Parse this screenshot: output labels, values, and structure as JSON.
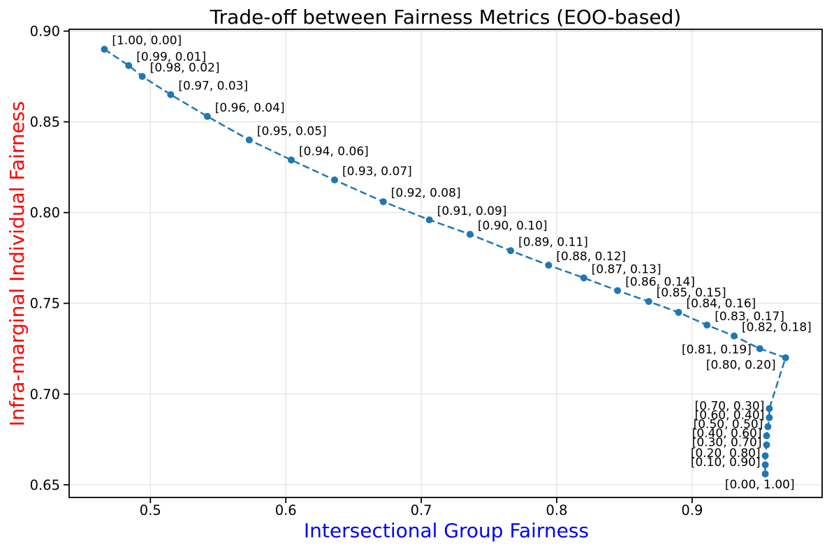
{
  "chart_data": {
    "type": "line",
    "title": "Trade-off between Fairness Metrics (EOO-based)",
    "xlabel": "Intersectional Group Fairness",
    "ylabel": "Infra-marginal Individual Fairness",
    "title_color": "#000000",
    "xlabel_color": "#0000ff",
    "ylabel_color": "#ff0000",
    "line_color": "#1f77b4",
    "line_style": "dashed",
    "marker": "circle",
    "annotation_color": "#000000",
    "tick_color": "#000000",
    "spine_color": "#000000",
    "grid_color": "#e0e0e0",
    "background_color": "#ffffff",
    "grid": true,
    "legend": false,
    "xlim": [
      0.44,
      0.996
    ],
    "ylim": [
      0.643,
      0.901
    ],
    "xticks": {
      "values": [
        0.5,
        0.6,
        0.7,
        0.8,
        0.9
      ],
      "labels": [
        "0.5",
        "0.6",
        "0.7",
        "0.8",
        "0.9"
      ]
    },
    "yticks": {
      "values": [
        0.65,
        0.7,
        0.75,
        0.8,
        0.85,
        0.9
      ],
      "labels": [
        "0.65",
        "0.70",
        "0.75",
        "0.80",
        "0.85",
        "0.90"
      ]
    },
    "points": [
      {
        "label": "[1.00, 0.00]",
        "x": 0.466,
        "y": 0.89,
        "anchor": "ur"
      },
      {
        "label": "[0.99, 0.01]",
        "x": 0.484,
        "y": 0.881,
        "anchor": "ur"
      },
      {
        "label": "[0.98, 0.02]",
        "x": 0.494,
        "y": 0.875,
        "anchor": "ur"
      },
      {
        "label": "[0.97, 0.03]",
        "x": 0.515,
        "y": 0.865,
        "anchor": "ur"
      },
      {
        "label": "[0.96, 0.04]",
        "x": 0.542,
        "y": 0.853,
        "anchor": "ur"
      },
      {
        "label": "[0.95, 0.05]",
        "x": 0.573,
        "y": 0.84,
        "anchor": "ur"
      },
      {
        "label": "[0.94, 0.06]",
        "x": 0.604,
        "y": 0.829,
        "anchor": "ur"
      },
      {
        "label": "[0.93, 0.07]",
        "x": 0.636,
        "y": 0.818,
        "anchor": "ur"
      },
      {
        "label": "[0.92, 0.08]",
        "x": 0.672,
        "y": 0.806,
        "anchor": "ur"
      },
      {
        "label": "[0.91, 0.09]",
        "x": 0.706,
        "y": 0.796,
        "anchor": "ur"
      },
      {
        "label": "[0.90, 0.10]",
        "x": 0.736,
        "y": 0.788,
        "anchor": "ur"
      },
      {
        "label": "[0.89, 0.11]",
        "x": 0.766,
        "y": 0.779,
        "anchor": "ur"
      },
      {
        "label": "[0.88, 0.12]",
        "x": 0.794,
        "y": 0.771,
        "anchor": "ur"
      },
      {
        "label": "[0.87, 0.13]",
        "x": 0.82,
        "y": 0.764,
        "anchor": "ur"
      },
      {
        "label": "[0.86, 0.14]",
        "x": 0.845,
        "y": 0.757,
        "anchor": "ur"
      },
      {
        "label": "[0.85, 0.15]",
        "x": 0.868,
        "y": 0.751,
        "anchor": "ur"
      },
      {
        "label": "[0.84, 0.16]",
        "x": 0.89,
        "y": 0.745,
        "anchor": "ur"
      },
      {
        "label": "[0.83, 0.17]",
        "x": 0.911,
        "y": 0.738,
        "anchor": "ur"
      },
      {
        "label": "[0.82, 0.18]",
        "x": 0.931,
        "y": 0.732,
        "anchor": "ur"
      },
      {
        "label": "[0.81, 0.19]",
        "x": 0.95,
        "y": 0.725,
        "anchor": "l"
      },
      {
        "label": "[0.80, 0.20]",
        "x": 0.969,
        "y": 0.72,
        "anchor": "ll"
      },
      {
        "label": "[0.70, 0.30]",
        "x": 0.957,
        "y": 0.692,
        "anchor": "lc"
      },
      {
        "label": "[0.60, 0.40]",
        "x": 0.957,
        "y": 0.687,
        "anchor": "lc"
      },
      {
        "label": "[0.50, 0.50]",
        "x": 0.956,
        "y": 0.682,
        "anchor": "lc"
      },
      {
        "label": "[0.40, 0.60]",
        "x": 0.955,
        "y": 0.677,
        "anchor": "lc"
      },
      {
        "label": "[0.30, 0.70]",
        "x": 0.955,
        "y": 0.672,
        "anchor": "lc"
      },
      {
        "label": "[0.20, 0.80]",
        "x": 0.954,
        "y": 0.666,
        "anchor": "lc"
      },
      {
        "label": "[0.10, 0.90]",
        "x": 0.954,
        "y": 0.661,
        "anchor": "lc"
      },
      {
        "label": "[0.00, 1.00]",
        "x": 0.954,
        "y": 0.656,
        "anchor": "b"
      }
    ]
  }
}
